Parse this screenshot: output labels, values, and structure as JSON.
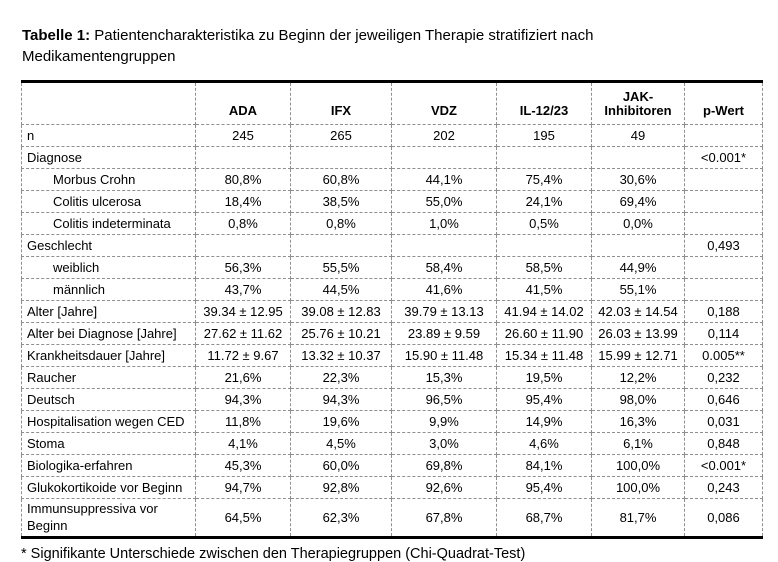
{
  "caption": {
    "label": "Tabelle 1:",
    "text": " Patientencharakteristika zu Beginn der jeweiligen Therapie stratifiziert nach Medikamentengruppen"
  },
  "table": {
    "columns": [
      "",
      "ADA",
      "IFX",
      "VDZ",
      "IL-12/23",
      "JAK-Inhibitoren",
      "p-Wert"
    ],
    "rows": [
      {
        "label": "n",
        "indent": false,
        "values": [
          "245",
          "265",
          "202",
          "195",
          "49"
        ],
        "p": ""
      },
      {
        "label": "Diagnose",
        "indent": false,
        "values": [
          "",
          "",
          "",
          "",
          ""
        ],
        "p": "<0.001*"
      },
      {
        "label": "Morbus Crohn",
        "indent": true,
        "values": [
          "80,8%",
          "60,8%",
          "44,1%",
          "75,4%",
          "30,6%"
        ],
        "p": ""
      },
      {
        "label": "Colitis ulcerosa",
        "indent": true,
        "values": [
          "18,4%",
          "38,5%",
          "55,0%",
          "24,1%",
          "69,4%"
        ],
        "p": ""
      },
      {
        "label": "Colitis indeterminata",
        "indent": true,
        "values": [
          "0,8%",
          "0,8%",
          "1,0%",
          "0,5%",
          "0,0%"
        ],
        "p": ""
      },
      {
        "label": "Geschlecht",
        "indent": false,
        "values": [
          "",
          "",
          "",
          "",
          ""
        ],
        "p": "0,493"
      },
      {
        "label": "weiblich",
        "indent": true,
        "values": [
          "56,3%",
          "55,5%",
          "58,4%",
          "58,5%",
          "44,9%"
        ],
        "p": ""
      },
      {
        "label": "männlich",
        "indent": true,
        "values": [
          "43,7%",
          "44,5%",
          "41,6%",
          "41,5%",
          "55,1%"
        ],
        "p": ""
      },
      {
        "label": "Alter [Jahre]",
        "indent": false,
        "values": [
          "39.34 ± 12.95",
          "39.08 ± 12.83",
          "39.79 ± 13.13",
          "41.94 ± 14.02",
          "42.03 ± 14.54"
        ],
        "p": "0,188"
      },
      {
        "label": "Alter bei Diagnose [Jahre]",
        "indent": false,
        "values": [
          "27.62 ± 11.62",
          "25.76 ± 10.21",
          "23.89 ± 9.59",
          "26.60 ± 11.90",
          "26.03 ± 13.99"
        ],
        "p": "0,114"
      },
      {
        "label": "Krankheitsdauer [Jahre]",
        "indent": false,
        "values": [
          "11.72 ± 9.67",
          "13.32 ± 10.37",
          "15.90 ± 11.48",
          "15.34 ± 11.48",
          "15.99 ± 12.71"
        ],
        "p": "0.005**"
      },
      {
        "label": "Raucher",
        "indent": false,
        "values": [
          "21,6%",
          "22,3%",
          "15,3%",
          "19,5%",
          "12,2%"
        ],
        "p": "0,232"
      },
      {
        "label": "Deutsch",
        "indent": false,
        "values": [
          "94,3%",
          "94,3%",
          "96,5%",
          "95,4%",
          "98,0%"
        ],
        "p": "0,646"
      },
      {
        "label": "Hospitalisation wegen CED",
        "indent": false,
        "values": [
          "11,8%",
          "19,6%",
          "9,9%",
          "14,9%",
          "16,3%"
        ],
        "p": "0,031"
      },
      {
        "label": "Stoma",
        "indent": false,
        "values": [
          "4,1%",
          "4,5%",
          "3,0%",
          "4,6%",
          "6,1%"
        ],
        "p": "0,848"
      },
      {
        "label": "Biologika-erfahren",
        "indent": false,
        "values": [
          "45,3%",
          "60,0%",
          "69,8%",
          "84,1%",
          "100,0%"
        ],
        "p": "<0.001*"
      },
      {
        "label": "Glukokortikoide vor Beginn",
        "indent": false,
        "values": [
          "94,7%",
          "92,8%",
          "92,6%",
          "95,4%",
          "100,0%"
        ],
        "p": "0,243"
      },
      {
        "label": "Immunsuppressiva vor Beginn",
        "indent": false,
        "values": [
          "64,5%",
          "62,3%",
          "67,8%",
          "68,7%",
          "81,7%"
        ],
        "p": "0,086"
      }
    ]
  },
  "footnote": "* Signifikante Unterschiede zwischen den Therapiegruppen (Chi-Quadrat-Test)"
}
